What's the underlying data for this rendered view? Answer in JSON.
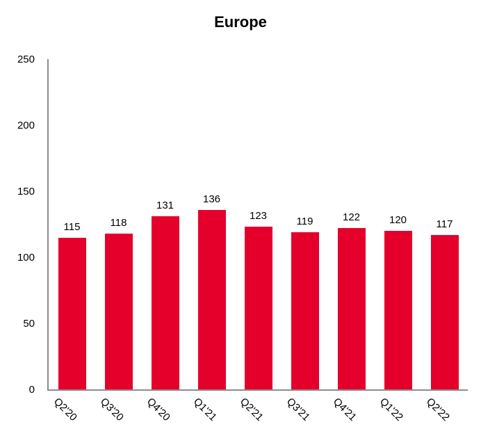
{
  "chart_data": {
    "type": "bar",
    "title": "Europe",
    "categories": [
      "Q2'20",
      "Q3'20",
      "Q4'20",
      "Q1'21",
      "Q2'21",
      "Q3'21",
      "Q4'21",
      "Q1'22",
      "Q2'22"
    ],
    "values": [
      115,
      118,
      131,
      136,
      123,
      119,
      122,
      120,
      117
    ],
    "xlabel": "",
    "ylabel": "",
    "ylim": [
      0,
      250
    ],
    "yticks": [
      0,
      50,
      100,
      150,
      200,
      250
    ],
    "grid": false,
    "legend_position": "none",
    "value_labels_shown": true,
    "x_tick_rotation_deg": 45,
    "bar_color": "#E4002B",
    "axis_color": "#8C8C8C",
    "text_color": "#000000",
    "background_color": "#FFFFFF"
  }
}
